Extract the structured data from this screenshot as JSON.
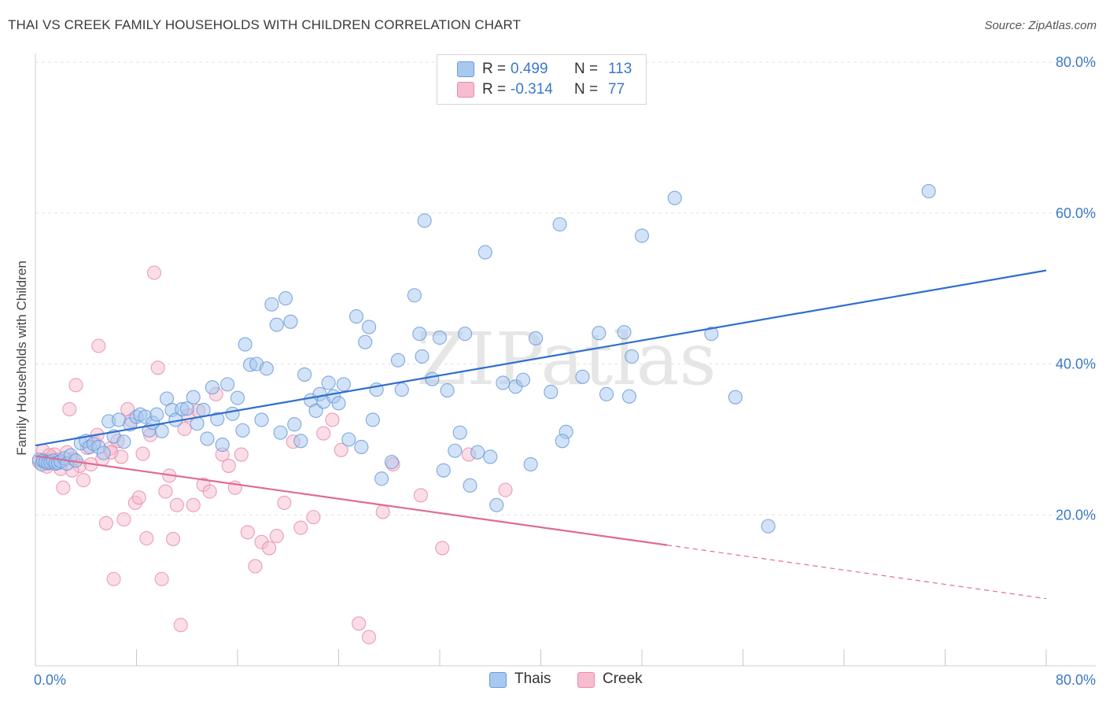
{
  "title": "THAI VS CREEK FAMILY HOUSEHOLDS WITH CHILDREN CORRELATION CHART",
  "source": "Source: ZipAtlas.com",
  "watermark": "ZIPatlas",
  "legend": {
    "rows": [
      {
        "r_label": "R =",
        "r_value": "0.499",
        "n_label": "N =",
        "n_value": "113",
        "color": "#a8c8f0",
        "border": "#6a9bd8"
      },
      {
        "r_label": "R =",
        "r_value": "-0.314",
        "n_label": "N =",
        "n_value": "77",
        "color": "#f7bcd0",
        "border": "#e88aab"
      }
    ]
  },
  "bottom_legend": [
    {
      "label": "Thais",
      "color": "#a8c8f0",
      "border": "#6a9bd8"
    },
    {
      "label": "Creek",
      "color": "#f7bcd0",
      "border": "#e88aab"
    }
  ],
  "colors": {
    "thai_fill": "#a8c8f0",
    "thai_stroke": "#6a9bd8",
    "thai_line": "#2f6fcc",
    "creek_fill": "#f7bcd0",
    "creek_stroke": "#e58fae",
    "creek_line": "#e06a95",
    "grid": "#e3e3e3",
    "axis_tick_text": "#3b78c9"
  },
  "chart_data": {
    "type": "scatter",
    "title": "THAI VS CREEK FAMILY HOUSEHOLDS WITH CHILDREN CORRELATION CHART",
    "xlabel": "",
    "ylabel": "Family Households with Children",
    "xlim": [
      0,
      80
    ],
    "ylim": [
      0,
      80
    ],
    "x_tick_labels": [
      "0.0%",
      "80.0%"
    ],
    "y_tick_labels": [
      "20.0%",
      "40.0%",
      "60.0%",
      "80.0%"
    ],
    "y_ticks": [
      20,
      40,
      60,
      80
    ],
    "grid": true,
    "legend_position": "top-center",
    "series": [
      {
        "name": "Thais",
        "trend": {
          "x": [
            0,
            80
          ],
          "y": [
            29.2,
            52.4
          ],
          "style": "solid"
        },
        "points": [
          [
            0.3,
            27.3
          ],
          [
            0.5,
            26.7
          ],
          [
            0.6,
            27.2
          ],
          [
            0.8,
            27.0
          ],
          [
            1.0,
            26.9
          ],
          [
            1.2,
            27.0
          ],
          [
            1.4,
            27.2
          ],
          [
            1.6,
            26.8
          ],
          [
            1.8,
            26.9
          ],
          [
            2.0,
            27.1
          ],
          [
            2.3,
            27.5
          ],
          [
            2.5,
            26.8
          ],
          [
            2.8,
            27.9
          ],
          [
            3.2,
            27.2
          ],
          [
            3.6,
            29.5
          ],
          [
            4.0,
            29.8
          ],
          [
            4.3,
            29.0
          ],
          [
            4.6,
            29.4
          ],
          [
            5.0,
            29.0
          ],
          [
            5.4,
            28.2
          ],
          [
            5.8,
            32.4
          ],
          [
            6.2,
            30.4
          ],
          [
            6.6,
            32.6
          ],
          [
            7.0,
            29.7
          ],
          [
            7.5,
            32.0
          ],
          [
            8.0,
            33.0
          ],
          [
            8.3,
            33.3
          ],
          [
            8.7,
            33.0
          ],
          [
            9.0,
            31.2
          ],
          [
            9.3,
            32.2
          ],
          [
            9.6,
            33.3
          ],
          [
            10.0,
            31.1
          ],
          [
            10.4,
            35.4
          ],
          [
            10.8,
            33.9
          ],
          [
            11.1,
            32.6
          ],
          [
            11.6,
            34.0
          ],
          [
            12.0,
            34.1
          ],
          [
            12.5,
            35.6
          ],
          [
            12.8,
            32.1
          ],
          [
            13.3,
            33.9
          ],
          [
            13.6,
            30.1
          ],
          [
            14.0,
            36.9
          ],
          [
            14.4,
            32.7
          ],
          [
            14.8,
            29.3
          ],
          [
            15.2,
            37.3
          ],
          [
            15.6,
            33.4
          ],
          [
            16.0,
            35.5
          ],
          [
            16.4,
            31.2
          ],
          [
            16.6,
            42.6
          ],
          [
            17.0,
            39.9
          ],
          [
            17.5,
            40.0
          ],
          [
            17.9,
            32.6
          ],
          [
            18.3,
            39.4
          ],
          [
            18.7,
            47.9
          ],
          [
            19.1,
            45.2
          ],
          [
            19.4,
            30.9
          ],
          [
            19.8,
            48.7
          ],
          [
            20.2,
            45.6
          ],
          [
            20.5,
            32.0
          ],
          [
            21.0,
            29.8
          ],
          [
            21.3,
            38.6
          ],
          [
            21.8,
            35.2
          ],
          [
            22.2,
            33.8
          ],
          [
            22.5,
            36.0
          ],
          [
            22.8,
            35.0
          ],
          [
            23.2,
            37.5
          ],
          [
            23.6,
            35.7
          ],
          [
            24.0,
            34.8
          ],
          [
            24.4,
            37.3
          ],
          [
            24.8,
            30.0
          ],
          [
            25.4,
            46.3
          ],
          [
            25.8,
            29.0
          ],
          [
            26.1,
            42.9
          ],
          [
            26.4,
            44.9
          ],
          [
            26.7,
            32.6
          ],
          [
            27.0,
            36.6
          ],
          [
            27.4,
            24.8
          ],
          [
            28.2,
            27.0
          ],
          [
            28.7,
            40.5
          ],
          [
            29.0,
            36.6
          ],
          [
            30.0,
            49.1
          ],
          [
            30.4,
            44.0
          ],
          [
            30.6,
            41.0
          ],
          [
            30.8,
            59.0
          ],
          [
            31.4,
            38.0
          ],
          [
            32.0,
            43.5
          ],
          [
            32.3,
            25.9
          ],
          [
            32.6,
            36.5
          ],
          [
            33.2,
            28.5
          ],
          [
            33.6,
            30.9
          ],
          [
            34.0,
            44.0
          ],
          [
            34.4,
            23.9
          ],
          [
            35.0,
            28.3
          ],
          [
            35.6,
            54.8
          ],
          [
            36.0,
            27.7
          ],
          [
            36.5,
            21.3
          ],
          [
            37.0,
            37.5
          ],
          [
            38.0,
            37.0
          ],
          [
            38.6,
            37.9
          ],
          [
            39.2,
            26.7
          ],
          [
            39.6,
            43.4
          ],
          [
            40.8,
            36.3
          ],
          [
            41.5,
            58.5
          ],
          [
            42.0,
            31.0
          ],
          [
            43.3,
            38.3
          ],
          [
            44.6,
            44.1
          ],
          [
            45.2,
            36.0
          ],
          [
            46.6,
            44.2
          ],
          [
            47.0,
            35.7
          ],
          [
            47.2,
            41.0
          ],
          [
            48.0,
            57.0
          ],
          [
            50.6,
            62.0
          ],
          [
            53.5,
            44.0
          ],
          [
            55.4,
            35.6
          ],
          [
            58.0,
            18.5
          ],
          [
            70.7,
            62.9
          ],
          [
            41.7,
            29.8
          ]
        ]
      },
      {
        "name": "Creek",
        "trend": {
          "x": [
            0,
            50
          ],
          "y": [
            27.8,
            16.0
          ],
          "style": "solid",
          "dash_extension_to": [
            80,
            8.9
          ]
        },
        "points": [
          [
            0.3,
            27.0
          ],
          [
            0.6,
            28.5
          ],
          [
            0.8,
            27.2
          ],
          [
            1.0,
            26.8
          ],
          [
            1.3,
            27.6
          ],
          [
            1.5,
            28.0
          ],
          [
            1.8,
            27.3
          ],
          [
            2.0,
            26.1
          ],
          [
            2.2,
            23.6
          ],
          [
            2.5,
            28.3
          ],
          [
            2.7,
            34.0
          ],
          [
            3.0,
            27.4
          ],
          [
            3.2,
            37.2
          ],
          [
            3.5,
            26.5
          ],
          [
            3.8,
            24.6
          ],
          [
            4.1,
            28.9
          ],
          [
            4.4,
            26.7
          ],
          [
            4.7,
            29.6
          ],
          [
            5.0,
            42.4
          ],
          [
            5.3,
            27.4
          ],
          [
            5.6,
            18.9
          ],
          [
            5.9,
            28.8
          ],
          [
            6.2,
            11.5
          ],
          [
            6.5,
            29.8
          ],
          [
            6.8,
            27.7
          ],
          [
            7.0,
            19.4
          ],
          [
            7.3,
            34.0
          ],
          [
            7.6,
            32.5
          ],
          [
            7.9,
            21.6
          ],
          [
            8.2,
            22.3
          ],
          [
            8.5,
            28.1
          ],
          [
            8.8,
            16.9
          ],
          [
            9.1,
            30.6
          ],
          [
            9.4,
            52.1
          ],
          [
            9.7,
            39.5
          ],
          [
            10.0,
            11.5
          ],
          [
            10.3,
            23.1
          ],
          [
            10.6,
            25.2
          ],
          [
            10.9,
            16.8
          ],
          [
            11.2,
            21.3
          ],
          [
            11.5,
            5.4
          ],
          [
            11.8,
            31.4
          ],
          [
            12.1,
            33.2
          ],
          [
            12.5,
            21.3
          ],
          [
            12.9,
            33.8
          ],
          [
            13.3,
            24.0
          ],
          [
            13.8,
            23.1
          ],
          [
            14.3,
            36.0
          ],
          [
            14.8,
            28.0
          ],
          [
            15.3,
            26.5
          ],
          [
            15.8,
            23.6
          ],
          [
            16.3,
            28.0
          ],
          [
            16.8,
            17.7
          ],
          [
            17.4,
            13.2
          ],
          [
            17.9,
            16.4
          ],
          [
            18.5,
            15.6
          ],
          [
            19.1,
            17.2
          ],
          [
            19.7,
            21.6
          ],
          [
            20.4,
            29.7
          ],
          [
            21.0,
            18.3
          ],
          [
            22.0,
            19.7
          ],
          [
            22.8,
            30.8
          ],
          [
            23.5,
            32.6
          ],
          [
            24.2,
            28.6
          ],
          [
            25.6,
            5.6
          ],
          [
            26.4,
            3.8
          ],
          [
            27.5,
            20.4
          ],
          [
            28.3,
            26.7
          ],
          [
            30.5,
            22.6
          ],
          [
            32.2,
            15.6
          ],
          [
            34.3,
            28.0
          ],
          [
            37.2,
            23.3
          ],
          [
            0.9,
            26.4
          ],
          [
            1.1,
            27.9
          ],
          [
            2.9,
            25.9
          ],
          [
            6.0,
            28.3
          ],
          [
            4.9,
            30.6
          ]
        ]
      }
    ]
  }
}
